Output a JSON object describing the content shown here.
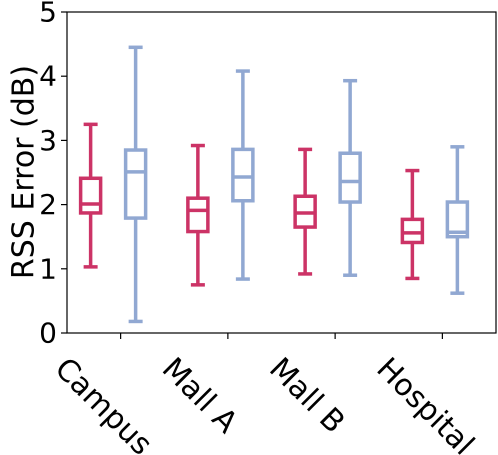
{
  "chart_data": {
    "type": "boxplot",
    "ylabel": "RSS Error (dB)",
    "xlabel": "",
    "ylim": [
      0,
      5
    ],
    "yticks": [
      0,
      1,
      2,
      3,
      4,
      5
    ],
    "categories": [
      "Campus",
      "Mall A",
      "Mall B",
      "Hospital"
    ],
    "grid": false,
    "legend": "none",
    "series": [
      {
        "color": "#cc3366",
        "boxes": [
          {
            "whisker_low": 1.03,
            "q1": 1.87,
            "median": 2.01,
            "q3": 2.41,
            "whisker_high": 3.25
          },
          {
            "whisker_low": 0.75,
            "q1": 1.58,
            "median": 1.91,
            "q3": 2.1,
            "whisker_high": 2.92
          },
          {
            "whisker_low": 0.92,
            "q1": 1.65,
            "median": 1.87,
            "q3": 2.13,
            "whisker_high": 2.86
          },
          {
            "whisker_low": 0.85,
            "q1": 1.41,
            "median": 1.56,
            "q3": 1.77,
            "whisker_high": 2.53
          }
        ]
      },
      {
        "color": "#91a8d2",
        "boxes": [
          {
            "whisker_low": 0.18,
            "q1": 1.79,
            "median": 2.51,
            "q3": 2.85,
            "whisker_high": 4.45
          },
          {
            "whisker_low": 0.84,
            "q1": 2.06,
            "median": 2.43,
            "q3": 2.86,
            "whisker_high": 4.08
          },
          {
            "whisker_low": 0.9,
            "q1": 2.04,
            "median": 2.36,
            "q3": 2.8,
            "whisker_high": 3.93
          },
          {
            "whisker_low": 0.62,
            "q1": 1.5,
            "median": 1.57,
            "q3": 2.04,
            "whisker_high": 2.9
          }
        ]
      }
    ]
  }
}
